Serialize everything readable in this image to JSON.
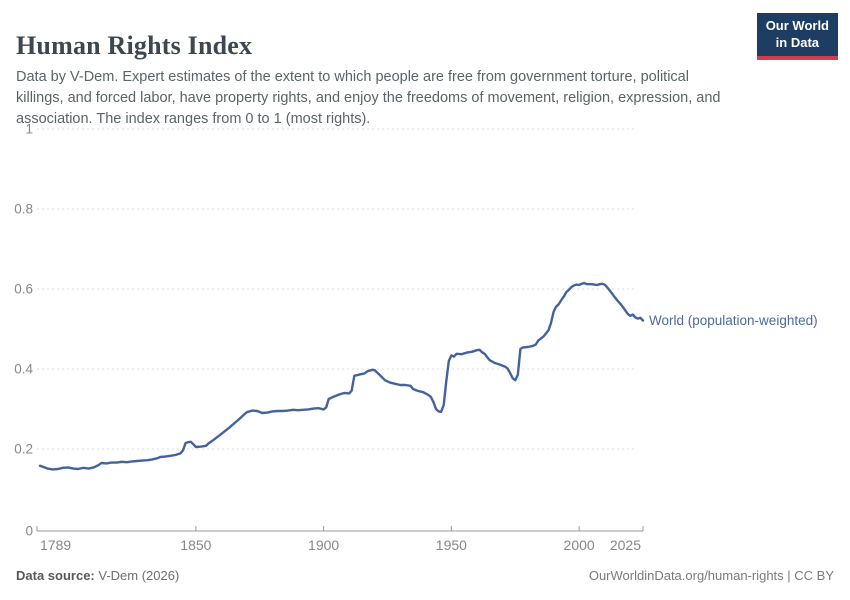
{
  "header": {
    "title": "Human Rights Index",
    "subtitle": "Data by V-Dem. Expert estimates of the extent to which people are free from government torture, political killings, and forced labor, have property rights, and enjoy the freedoms of movement, religion, expression, and association. The index ranges from 0 to 1 (most rights).",
    "logo_line1": "Our World",
    "logo_line2": "in Data"
  },
  "footer": {
    "source_label": "Data source:",
    "source_value": " V-Dem (2026)",
    "credit": "OurWorldinData.org/human-rights | CC BY"
  },
  "colors": {
    "line": "#44639c",
    "legend_text": "#4c6a9c",
    "grid": "#dcdcdc",
    "axis": "#999999",
    "axis_text": "#878787",
    "logo_bg": "#1d3d63",
    "logo_red": "#d93a4e"
  },
  "chart_data": {
    "type": "line",
    "title": "Human Rights Index",
    "xlabel": "",
    "ylabel": "",
    "xlim": [
      1789,
      2025
    ],
    "ylim": [
      0,
      1
    ],
    "x_ticks": [
      1789,
      1850,
      1900,
      1950,
      2000,
      2025
    ],
    "y_ticks": [
      0,
      0.2,
      0.4,
      0.6,
      0.8,
      1
    ],
    "grid": "horizontal-dashed",
    "legend_position": "end-of-line",
    "series": [
      {
        "name": "World (population-weighted)",
        "points": [
          [
            1789,
            0.158
          ],
          [
            1790,
            0.156
          ],
          [
            1792,
            0.151
          ],
          [
            1794,
            0.149
          ],
          [
            1796,
            0.15
          ],
          [
            1798,
            0.153
          ],
          [
            1800,
            0.154
          ],
          [
            1802,
            0.151
          ],
          [
            1804,
            0.15
          ],
          [
            1806,
            0.153
          ],
          [
            1808,
            0.151
          ],
          [
            1810,
            0.154
          ],
          [
            1812,
            0.16
          ],
          [
            1813,
            0.165
          ],
          [
            1815,
            0.164
          ],
          [
            1817,
            0.166
          ],
          [
            1819,
            0.166
          ],
          [
            1821,
            0.168
          ],
          [
            1823,
            0.167
          ],
          [
            1825,
            0.169
          ],
          [
            1827,
            0.17
          ],
          [
            1829,
            0.171
          ],
          [
            1831,
            0.172
          ],
          [
            1833,
            0.174
          ],
          [
            1835,
            0.177
          ],
          [
            1836,
            0.18
          ],
          [
            1838,
            0.181
          ],
          [
            1840,
            0.183
          ],
          [
            1842,
            0.185
          ],
          [
            1844,
            0.189
          ],
          [
            1845,
            0.197
          ],
          [
            1846,
            0.215
          ],
          [
            1847,
            0.217
          ],
          [
            1848,
            0.218
          ],
          [
            1849,
            0.212
          ],
          [
            1850,
            0.205
          ],
          [
            1852,
            0.206
          ],
          [
            1854,
            0.208
          ],
          [
            1855,
            0.214
          ],
          [
            1857,
            0.223
          ],
          [
            1859,
            0.233
          ],
          [
            1861,
            0.243
          ],
          [
            1863,
            0.253
          ],
          [
            1865,
            0.264
          ],
          [
            1867,
            0.275
          ],
          [
            1869,
            0.287
          ],
          [
            1870,
            0.292
          ],
          [
            1872,
            0.296
          ],
          [
            1874,
            0.295
          ],
          [
            1876,
            0.29
          ],
          [
            1878,
            0.291
          ],
          [
            1880,
            0.294
          ],
          [
            1882,
            0.295
          ],
          [
            1884,
            0.295
          ],
          [
            1886,
            0.296
          ],
          [
            1888,
            0.298
          ],
          [
            1890,
            0.297
          ],
          [
            1892,
            0.298
          ],
          [
            1894,
            0.299
          ],
          [
            1896,
            0.301
          ],
          [
            1898,
            0.302
          ],
          [
            1900,
            0.299
          ],
          [
            1901,
            0.304
          ],
          [
            1902,
            0.325
          ],
          [
            1904,
            0.331
          ],
          [
            1906,
            0.336
          ],
          [
            1908,
            0.34
          ],
          [
            1910,
            0.339
          ],
          [
            1911,
            0.346
          ],
          [
            1912,
            0.383
          ],
          [
            1914,
            0.386
          ],
          [
            1916,
            0.389
          ],
          [
            1917,
            0.394
          ],
          [
            1919,
            0.398
          ],
          [
            1920,
            0.397
          ],
          [
            1922,
            0.385
          ],
          [
            1924,
            0.372
          ],
          [
            1926,
            0.366
          ],
          [
            1928,
            0.363
          ],
          [
            1930,
            0.36
          ],
          [
            1932,
            0.36
          ],
          [
            1934,
            0.358
          ],
          [
            1935,
            0.35
          ],
          [
            1937,
            0.345
          ],
          [
            1939,
            0.342
          ],
          [
            1941,
            0.335
          ],
          [
            1942,
            0.33
          ],
          [
            1943,
            0.317
          ],
          [
            1944,
            0.3
          ],
          [
            1945,
            0.294
          ],
          [
            1946,
            0.293
          ],
          [
            1947,
            0.31
          ],
          [
            1948,
            0.37
          ],
          [
            1949,
            0.42
          ],
          [
            1950,
            0.434
          ],
          [
            1951,
            0.431
          ],
          [
            1952,
            0.438
          ],
          [
            1954,
            0.437
          ],
          [
            1956,
            0.441
          ],
          [
            1958,
            0.443
          ],
          [
            1960,
            0.447
          ],
          [
            1961,
            0.448
          ],
          [
            1962,
            0.442
          ],
          [
            1963,
            0.438
          ],
          [
            1964,
            0.43
          ],
          [
            1965,
            0.422
          ],
          [
            1967,
            0.415
          ],
          [
            1969,
            0.411
          ],
          [
            1971,
            0.406
          ],
          [
            1972,
            0.401
          ],
          [
            1973,
            0.39
          ],
          [
            1974,
            0.377
          ],
          [
            1975,
            0.372
          ],
          [
            1976,
            0.385
          ],
          [
            1977,
            0.45
          ],
          [
            1978,
            0.454
          ],
          [
            1980,
            0.455
          ],
          [
            1982,
            0.458
          ],
          [
            1983,
            0.461
          ],
          [
            1984,
            0.471
          ],
          [
            1986,
            0.481
          ],
          [
            1988,
            0.497
          ],
          [
            1989,
            0.515
          ],
          [
            1990,
            0.543
          ],
          [
            1991,
            0.556
          ],
          [
            1992,
            0.562
          ],
          [
            1993,
            0.572
          ],
          [
            1994,
            0.581
          ],
          [
            1995,
            0.592
          ],
          [
            1996,
            0.598
          ],
          [
            1997,
            0.605
          ],
          [
            1998,
            0.609
          ],
          [
            1999,
            0.611
          ],
          [
            2000,
            0.61
          ],
          [
            2001,
            0.613
          ],
          [
            2002,
            0.615
          ],
          [
            2003,
            0.612
          ],
          [
            2005,
            0.612
          ],
          [
            2007,
            0.61
          ],
          [
            2008,
            0.612
          ],
          [
            2009,
            0.613
          ],
          [
            2010,
            0.611
          ],
          [
            2011,
            0.604
          ],
          [
            2012,
            0.596
          ],
          [
            2013,
            0.588
          ],
          [
            2014,
            0.579
          ],
          [
            2015,
            0.571
          ],
          [
            2016,
            0.564
          ],
          [
            2017,
            0.556
          ],
          [
            2018,
            0.547
          ],
          [
            2019,
            0.538
          ],
          [
            2020,
            0.533
          ],
          [
            2021,
            0.536
          ],
          [
            2022,
            0.529
          ],
          [
            2023,
            0.526
          ],
          [
            2024,
            0.528
          ],
          [
            2025,
            0.521
          ]
        ]
      }
    ]
  }
}
